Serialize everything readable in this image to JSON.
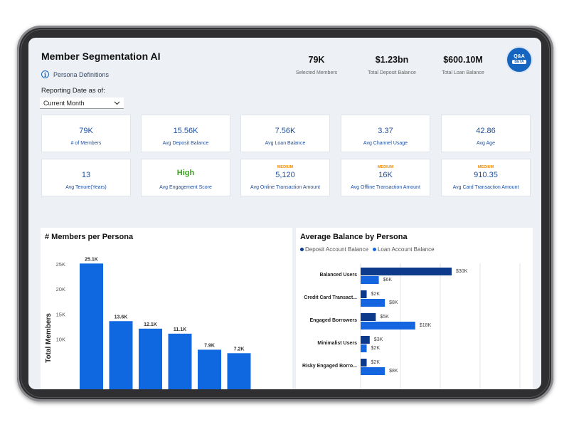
{
  "app": {
    "title": "Member Segmentation AI",
    "persona_link": "Persona Definitions"
  },
  "filter": {
    "label": "Reporting Date as of:",
    "value": "Current Month"
  },
  "top_kpis": [
    {
      "value": "79K",
      "label": "Selected Members"
    },
    {
      "value": "$1.23bn",
      "label": "Total Deposit Balance"
    },
    {
      "value": "$600.10M",
      "label": "Total Loan Balance"
    }
  ],
  "qa_button": {
    "label": "Q&A",
    "badge": "BETA"
  },
  "cards": [
    {
      "value": "79K",
      "label": "# of Members",
      "badge": ""
    },
    {
      "value": "15.56K",
      "label": "Avg Deposit Balance",
      "badge": ""
    },
    {
      "value": "7.56K",
      "label": "Avg Loan Balance",
      "badge": ""
    },
    {
      "value": "3.37",
      "label": "Avg Channel Usage",
      "badge": ""
    },
    {
      "value": "42.86",
      "label": "Avg Age",
      "badge": ""
    },
    {
      "value": "13",
      "label": "Avg Tenure(Years)",
      "badge": ""
    },
    {
      "value": "High",
      "label": "Avg Engagement Score",
      "badge": ""
    },
    {
      "value": "5,120",
      "label": "Avg Online Transaction Amount",
      "badge": "MEDIUM"
    },
    {
      "value": "16K",
      "label": "Avg  Offline Transaction Amount",
      "badge": "MEDIUM"
    },
    {
      "value": "910.35",
      "label": "Avg Card Transaction Amount",
      "badge": "MEDIUM"
    }
  ],
  "colors": {
    "accent": "#1565c0",
    "bar": "#1068e0",
    "deposit": "#0d3a8a",
    "loan": "#1565e0",
    "high": "#3aa11f",
    "medium": "#f08a00"
  },
  "chart_data": [
    {
      "type": "bar",
      "title": "# Members per Persona",
      "ylabel": "Total Members",
      "xlabel": "",
      "ylim": [
        0,
        27000
      ],
      "yticks": [
        "25K",
        "20K",
        "15K",
        "10K"
      ],
      "categories": [
        "",
        "",
        "",
        "",
        "",
        ""
      ],
      "values": [
        25100,
        13600,
        12100,
        11100,
        7900,
        7200
      ],
      "data_labels": [
        "25.1K",
        "13.6K",
        "12.1K",
        "11.1K",
        "7.9K",
        "7.2K"
      ],
      "grid": false
    },
    {
      "type": "bar",
      "orientation": "horizontal",
      "title": "Average Balance by Persona",
      "legend_position": "top-left",
      "categories": [
        "Balanced Users",
        "Credit Card Transact...",
        "Engaged Borrowers",
        "Minimalist Users",
        "Risky Engaged Borro..."
      ],
      "series": [
        {
          "name": "Deposit Account Balance",
          "values": [
            30000,
            2000,
            5000,
            3000,
            2000
          ],
          "labels": [
            "$30K",
            "$2K",
            "$5K",
            "$3K",
            "$2K"
          ]
        },
        {
          "name": "Loan Account Balance",
          "values": [
            6000,
            8000,
            18000,
            2000,
            8000
          ],
          "labels": [
            "$6K",
            "$8K",
            "$18K",
            "$2K",
            "$8K"
          ]
        }
      ],
      "grid": true
    }
  ]
}
